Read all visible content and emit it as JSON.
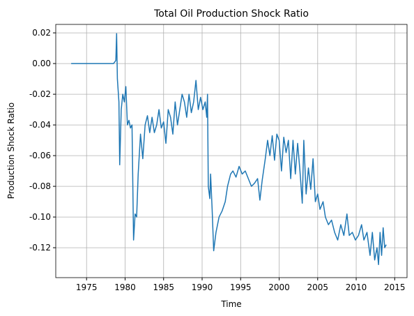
{
  "chart_data": {
    "type": "line",
    "title": "Total Oil Production Shock Ratio",
    "x_label": "Time",
    "y_label": "Production Shock Ratio",
    "xlim": [
      1971.0,
      2016.6
    ],
    "ylim": [
      -0.1395,
      0.0255
    ],
    "xticks": [
      1975,
      1980,
      1985,
      1990,
      1995,
      2000,
      2005,
      2010,
      2015
    ],
    "yticks": [
      -0.12,
      {
        "value": -0.1,
        "label": "-0.10"
      },
      -0.08,
      -0.06,
      -0.04,
      -0.02,
      {
        "value": 0,
        "label": "0.00"
      },
      0.02
    ],
    "grid": true,
    "series": [
      {
        "color": "#1f77b4",
        "x": [
          1973.0,
          1978.5,
          1978.8,
          1978.9,
          1979.0,
          1979.2,
          1979.3,
          1979.5,
          1979.7,
          1979.9,
          1980.1,
          1980.3,
          1980.5,
          1980.7,
          1980.9,
          1981.1,
          1981.3,
          1981.5,
          1981.7,
          1982.0,
          1982.3,
          1982.6,
          1982.9,
          1983.2,
          1983.5,
          1983.8,
          1984.1,
          1984.4,
          1984.7,
          1985.0,
          1985.3,
          1985.6,
          1985.9,
          1986.2,
          1986.5,
          1986.8,
          1987.1,
          1987.4,
          1987.7,
          1988.0,
          1988.3,
          1988.6,
          1988.9,
          1989.2,
          1989.5,
          1989.8,
          1990.1,
          1990.4,
          1990.6,
          1990.7,
          1990.8,
          1991.0,
          1991.1,
          1991.3,
          1991.5,
          1991.8,
          1992.2,
          1992.6,
          1993.0,
          1993.3,
          1993.7,
          1994.0,
          1994.4,
          1994.8,
          1995.2,
          1995.6,
          1996.0,
          1996.4,
          1996.8,
          1997.2,
          1997.5,
          1997.8,
          1998.2,
          1998.5,
          1998.8,
          1999.1,
          1999.4,
          1999.7,
          2000.0,
          2000.3,
          2000.6,
          2000.9,
          2001.2,
          2001.5,
          2001.8,
          2002.1,
          2002.4,
          2002.7,
          2003.0,
          2003.2,
          2003.5,
          2003.8,
          2004.1,
          2004.4,
          2004.7,
          2005.0,
          2005.3,
          2005.7,
          2006.0,
          2006.4,
          2006.8,
          2007.2,
          2007.6,
          2008.0,
          2008.4,
          2008.8,
          2009.1,
          2009.5,
          2009.9,
          2010.3,
          2010.7,
          2011.0,
          2011.4,
          2011.8,
          2012.1,
          2012.4,
          2012.7,
          2012.9,
          2013.1,
          2013.3,
          2013.5,
          2013.7,
          2013.9
        ],
        "values": [
          0,
          0,
          0.002,
          0.0195,
          -0.01,
          -0.025,
          -0.066,
          -0.03,
          -0.02,
          -0.025,
          -0.015,
          -0.04,
          -0.037,
          -0.042,
          -0.04,
          -0.115,
          -0.098,
          -0.1,
          -0.072,
          -0.046,
          -0.062,
          -0.04,
          -0.034,
          -0.045,
          -0.035,
          -0.045,
          -0.04,
          -0.03,
          -0.042,
          -0.038,
          -0.052,
          -0.03,
          -0.035,
          -0.046,
          -0.025,
          -0.04,
          -0.03,
          -0.02,
          -0.025,
          -0.035,
          -0.02,
          -0.032,
          -0.025,
          -0.011,
          -0.03,
          -0.022,
          -0.03,
          -0.025,
          -0.035,
          -0.02,
          -0.08,
          -0.088,
          -0.072,
          -0.095,
          -0.122,
          -0.11,
          -0.1,
          -0.096,
          -0.09,
          -0.08,
          -0.072,
          -0.07,
          -0.074,
          -0.067,
          -0.072,
          -0.07,
          -0.075,
          -0.08,
          -0.078,
          -0.075,
          -0.089,
          -0.076,
          -0.062,
          -0.05,
          -0.06,
          -0.047,
          -0.063,
          -0.046,
          -0.05,
          -0.07,
          -0.048,
          -0.058,
          -0.05,
          -0.075,
          -0.05,
          -0.072,
          -0.052,
          -0.07,
          -0.091,
          -0.05,
          -0.085,
          -0.068,
          -0.082,
          -0.062,
          -0.09,
          -0.085,
          -0.095,
          -0.09,
          -0.1,
          -0.105,
          -0.102,
          -0.11,
          -0.115,
          -0.105,
          -0.112,
          -0.098,
          -0.112,
          -0.11,
          -0.115,
          -0.112,
          -0.105,
          -0.115,
          -0.11,
          -0.125,
          -0.11,
          -0.128,
          -0.12,
          -0.131,
          -0.11,
          -0.125,
          -0.107,
          -0.12,
          -0.118
        ]
      }
    ]
  }
}
